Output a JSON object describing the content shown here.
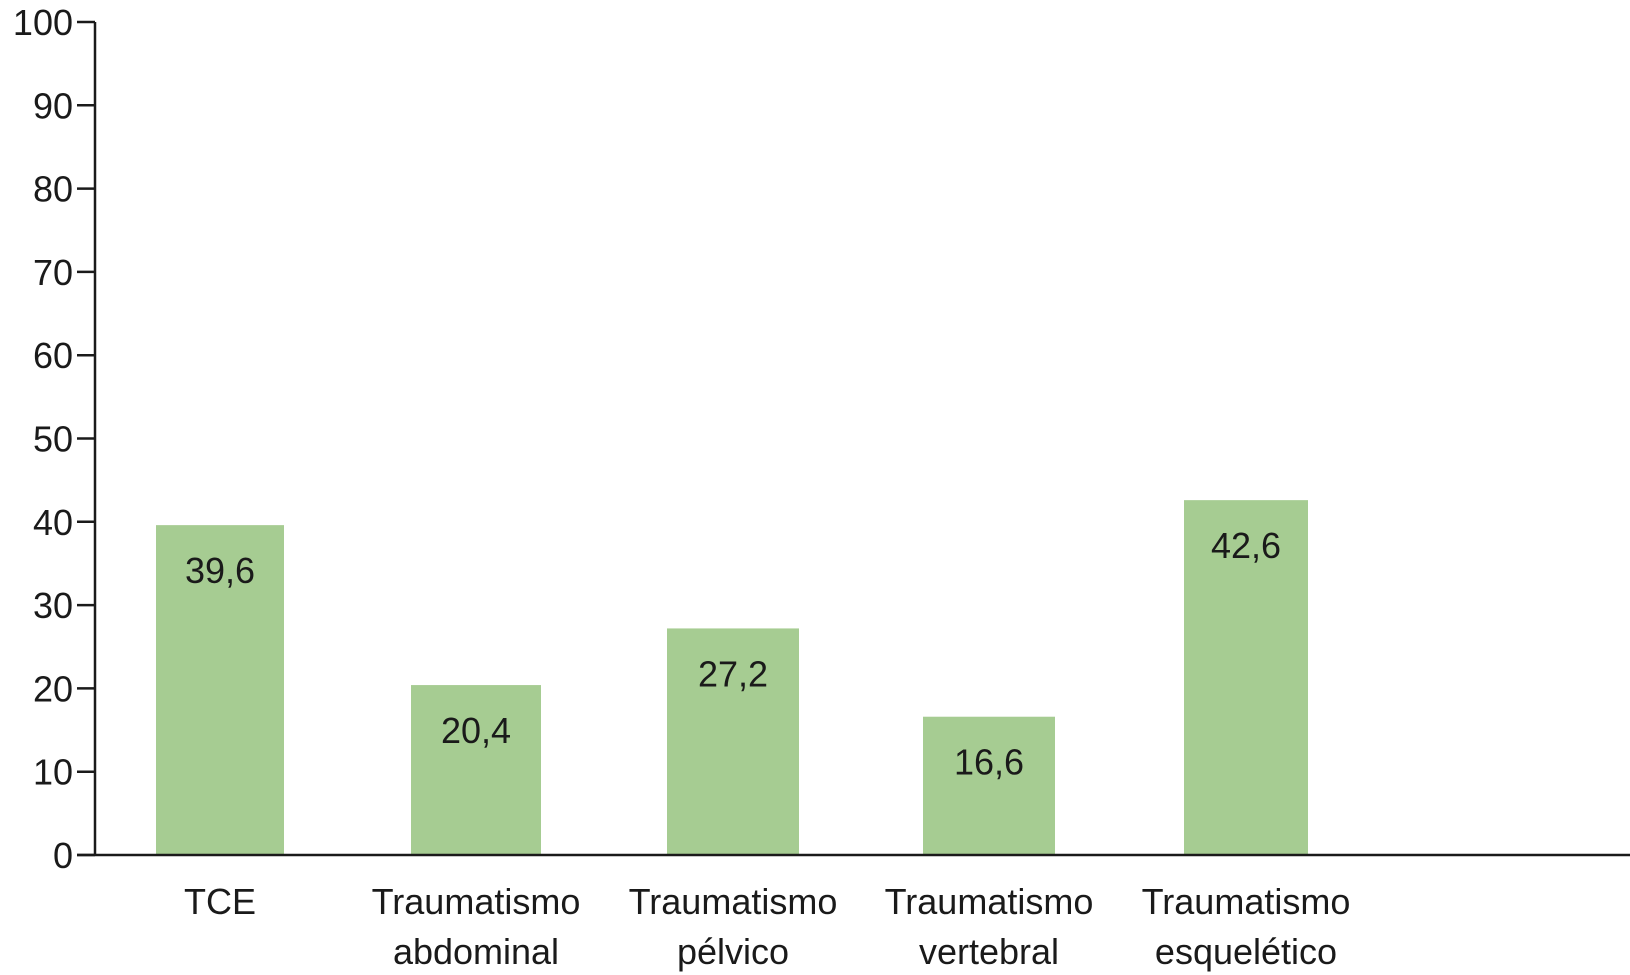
{
  "chart_data": {
    "type": "bar",
    "categories": [
      [
        "TCE"
      ],
      [
        "Traumatismo",
        "abdominal"
      ],
      [
        "Traumatismo",
        "pélvico"
      ],
      [
        "Traumatismo",
        "vertebral"
      ],
      [
        "Traumatismo",
        "esquelético"
      ]
    ],
    "values": [
      39.6,
      20.4,
      27.2,
      16.6,
      42.6
    ],
    "value_labels": [
      "39,6",
      "20,4",
      "27,2",
      "16,6",
      "42,6"
    ],
    "ylim": [
      0,
      100
    ],
    "yticks": [
      0,
      10,
      20,
      30,
      40,
      50,
      60,
      70,
      80,
      90,
      100
    ],
    "bar_color": "#a6cc92",
    "axis_color": "#1a1a1a",
    "grid": false,
    "legend": "none",
    "title": "",
    "xlabel": "",
    "ylabel": ""
  }
}
